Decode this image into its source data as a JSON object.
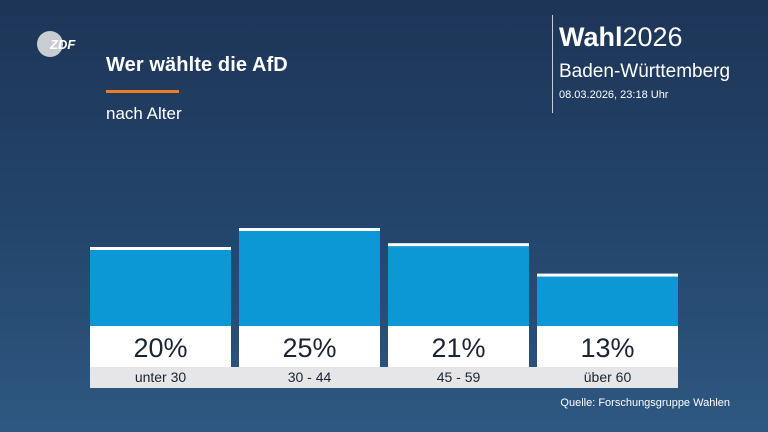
{
  "logo": {
    "text": "ZDF"
  },
  "header": {
    "title": "Wer wählte die AfD",
    "subtitle": "nach Alter"
  },
  "brand": {
    "name_bold": "Wahl",
    "name_regular": "2026",
    "region": "Baden-Württemberg",
    "timestamp": "08.03.2026, 23:18 Uhr"
  },
  "chart_data": {
    "type": "bar",
    "title": "Wer wählte die AfD",
    "subtitle": "nach Alter",
    "categories": [
      "unter 30",
      "30 - 44",
      "45 - 59",
      "über 60"
    ],
    "values": [
      20,
      25,
      21,
      13
    ],
    "value_labels": [
      "20%",
      "25%",
      "21%",
      "13%"
    ],
    "unit": "%",
    "xlabel": "",
    "ylabel": "",
    "ylim": [
      0,
      25
    ],
    "grid": false,
    "legend": "none"
  },
  "colors": {
    "bar": "#0b98d4",
    "bar_top": "#ffffff",
    "label_box": "#ffffff",
    "category_box": "#e6e6e8",
    "text_dark": "#1a2433",
    "accent": "#f07c1e"
  },
  "footer": {
    "source": "Quelle: Forschungsgruppe Wahlen"
  }
}
